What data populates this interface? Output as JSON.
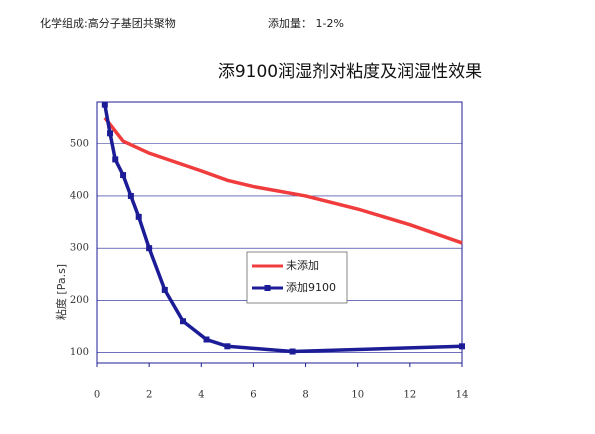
{
  "header": {
    "composition": "化学组成:高分子基团共聚物",
    "dosage": "添加量： 1-2%"
  },
  "chart_data": {
    "type": "line",
    "title": "添9100润湿剂对粘度及润湿性效果",
    "y_label": "粘度 [Pa.s]",
    "xlim": [
      0,
      14
    ],
    "xticks": [
      0,
      2,
      4,
      6,
      8,
      10,
      12,
      14
    ],
    "ylim": [
      80,
      580
    ],
    "yticks": [
      100,
      200,
      300,
      400,
      500
    ],
    "grid": true,
    "series": [
      {
        "name": "未添加",
        "color": "#f03c3c",
        "markers": false,
        "x": [
          0.3,
          1,
          2,
          3,
          4,
          5,
          6,
          8,
          10,
          12,
          14
        ],
        "values": [
          550,
          505,
          482,
          465,
          448,
          430,
          418,
          400,
          375,
          345,
          310
        ]
      },
      {
        "name": "添加9100",
        "color": "#1c1c96",
        "markers": true,
        "x": [
          0.3,
          0.5,
          0.7,
          1,
          1.3,
          1.6,
          2,
          2.6,
          3.3,
          4.2,
          5,
          7.5,
          14
        ],
        "values": [
          575,
          520,
          470,
          440,
          400,
          360,
          300,
          220,
          160,
          125,
          112,
          102,
          112
        ]
      }
    ]
  }
}
